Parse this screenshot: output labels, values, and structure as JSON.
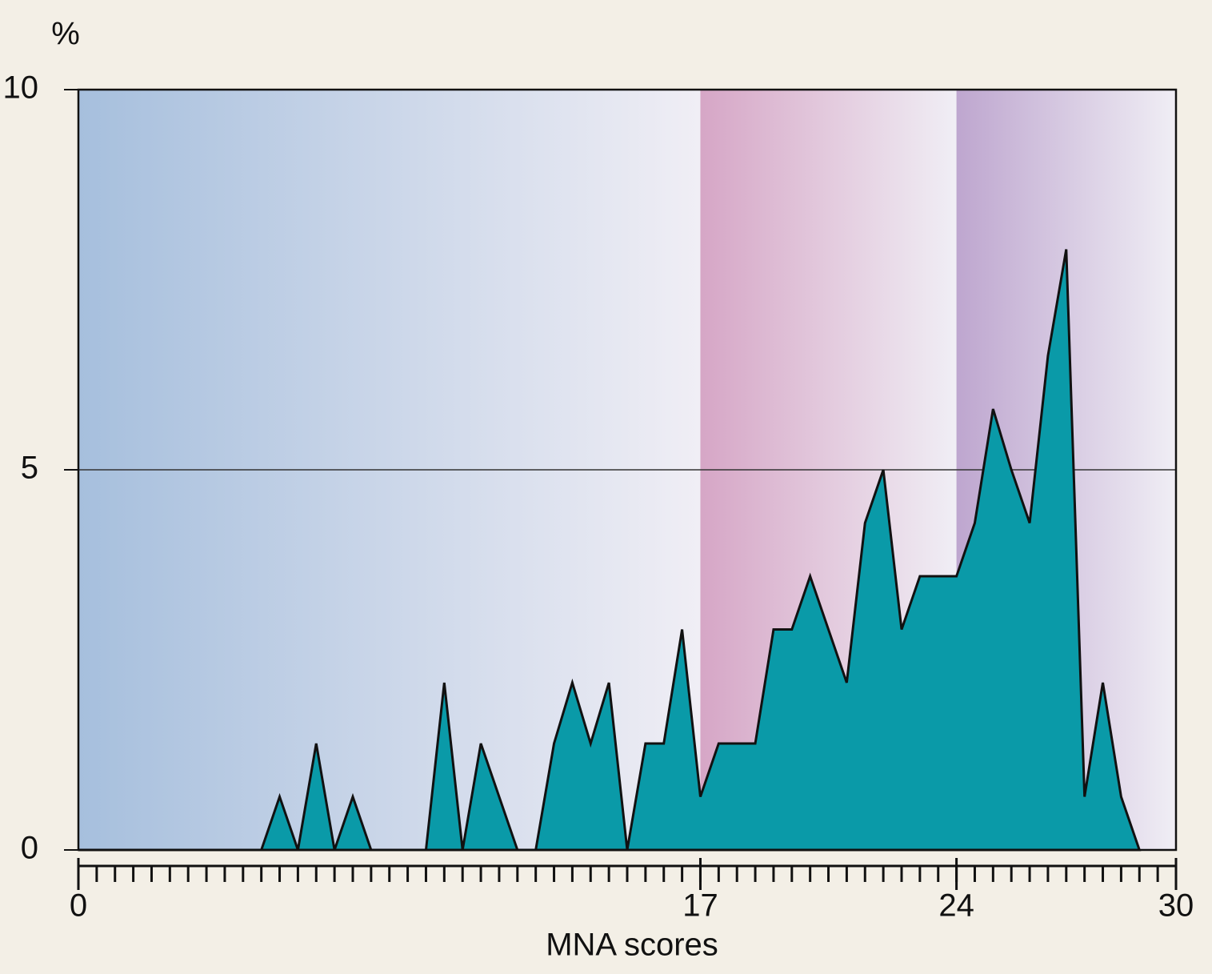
{
  "chart_data": {
    "type": "area",
    "ylabel": "%",
    "xlabel": "MNA scores",
    "x": [
      0,
      5,
      5.5,
      6,
      6.5,
      7,
      7.5,
      8,
      9.5,
      10,
      10.5,
      11,
      12,
      12.5,
      13,
      13.5,
      14,
      14.5,
      15,
      15.5,
      16,
      16.5,
      17,
      17.5,
      18.5,
      19,
      19.5,
      20,
      21,
      21.5,
      22,
      22.5,
      23,
      24,
      24.5,
      25,
      25.5,
      26,
      26.5,
      27,
      27.5,
      28,
      28.5,
      29
    ],
    "series": [
      {
        "color": "#0a9aa8",
        "values": [
          0,
          0,
          0.7,
          0,
          1.4,
          0,
          0.7,
          0,
          0,
          2.2,
          0,
          1.4,
          0,
          0,
          1.4,
          2.2,
          1.4,
          2.2,
          0,
          1.4,
          1.4,
          2.9,
          0.7,
          1.4,
          1.4,
          2.9,
          2.9,
          3.6,
          2.2,
          4.3,
          5,
          2.9,
          3.6,
          3.6,
          4.3,
          5.8,
          5,
          4.3,
          6.5,
          7.9,
          0.7,
          2.2,
          0.7,
          0
        ]
      }
    ],
    "xlim": [
      0,
      30
    ],
    "xticks": [
      0,
      17,
      24,
      30
    ],
    "x_minor_tick_interval": 0.5,
    "ylim": [
      0,
      10
    ],
    "yticks": [
      0,
      5,
      10
    ],
    "grid": true,
    "bands": [
      {
        "from": 0,
        "to": 17,
        "color": "#a6bfdd"
      },
      {
        "from": 17,
        "to": 24,
        "color": "#d6a6c6"
      },
      {
        "from": 24,
        "to": 30,
        "color": "#bea6cf"
      }
    ]
  }
}
